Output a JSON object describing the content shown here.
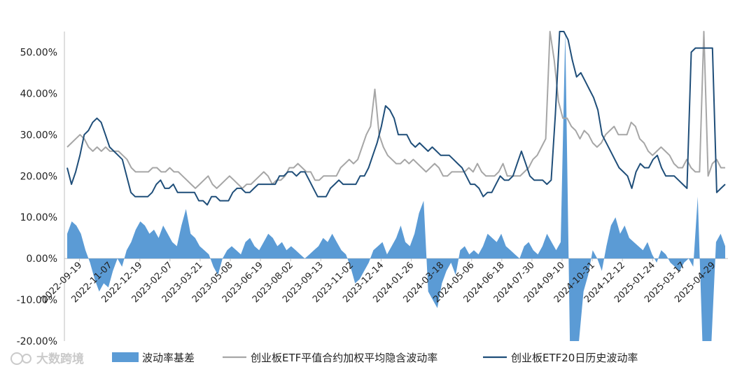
{
  "colors": {
    "basis": "#5b9bd5",
    "implied": "#a6a6a6",
    "historical": "#1f4e79",
    "axis": "#bfbfbf",
    "watermark": "#bdbdbd"
  },
  "watermark": {
    "text": "大数跨境"
  },
  "chart_data": {
    "type": "line",
    "x_tick_labels": [
      "2022-09-19",
      "2022-11-07",
      "2022-12-19",
      "2023-02-07",
      "2023-03-21",
      "2023-05-08",
      "2023-06-19",
      "2023-08-02",
      "2023-09-13",
      "2023-11-02",
      "2023-12-14",
      "2024-01-26",
      "2024-03-18",
      "2024-05-06",
      "2024-06-18",
      "2024-07-30",
      "2024-09-10",
      "2024-10-31",
      "2024-12-12",
      "2025-01-24",
      "2025-03-17",
      "2025-04-29"
    ],
    "y_tick_labels": [
      "-20.00%",
      "-10.00%",
      "0.00%",
      "10.00%",
      "20.00%",
      "30.00%",
      "40.00%",
      "50.00%"
    ],
    "ylim": [
      -20,
      55
    ],
    "grid": false,
    "legend_position": "bottom",
    "series": [
      {
        "name": "波动率基差",
        "type": "area",
        "values": [
          6,
          9,
          8,
          6,
          2,
          -1,
          -5,
          -8,
          -6,
          -7,
          -3,
          0,
          -2,
          2,
          4,
          7,
          9,
          8,
          6,
          7,
          5,
          8,
          6,
          4,
          3,
          8,
          12,
          6,
          5,
          3,
          2,
          1,
          -2,
          -4,
          0,
          2,
          3,
          2,
          1,
          4,
          5,
          3,
          2,
          4,
          6,
          5,
          3,
          4,
          2,
          3,
          2,
          1,
          0,
          1,
          2,
          3,
          5,
          4,
          6,
          4,
          2,
          1,
          -2,
          -6,
          -5,
          -3,
          -1,
          2,
          3,
          4,
          1,
          3,
          5,
          8,
          4,
          3,
          6,
          11,
          14,
          -8,
          -10,
          -12,
          -6,
          -3,
          -1,
          -4,
          2,
          3,
          1,
          2,
          1,
          3,
          6,
          5,
          4,
          6,
          3,
          2,
          1,
          0,
          3,
          4,
          2,
          1,
          3,
          6,
          4,
          2,
          4,
          55,
          -20,
          -20,
          -20,
          -8,
          -4,
          2,
          0,
          -3,
          3,
          8,
          10,
          6,
          8,
          5,
          4,
          3,
          2,
          4,
          1,
          -1,
          2,
          1,
          -1,
          -2,
          -3,
          -1,
          0,
          -2,
          15,
          -20,
          -20,
          -20,
          4,
          6,
          3
        ]
      },
      {
        "name": "创业板ETF平值合约加权平均隐含波动率",
        "type": "line",
        "values": [
          27,
          28,
          29,
          30,
          29,
          27,
          26,
          27,
          26,
          27,
          26,
          26,
          26,
          25,
          24,
          22,
          21,
          21,
          21,
          21,
          22,
          22,
          21,
          21,
          22,
          21,
          21,
          20,
          19,
          18,
          17,
          18,
          19,
          20,
          18,
          17,
          18,
          19,
          20,
          19,
          18,
          17,
          18,
          18,
          19,
          20,
          21,
          20,
          18,
          19,
          19,
          20,
          22,
          22,
          23,
          22,
          21,
          21,
          19,
          19,
          20,
          20,
          20,
          20,
          22,
          23,
          24,
          23,
          24,
          27,
          30,
          32,
          41,
          30,
          27,
          25,
          24,
          23,
          23,
          24,
          23,
          24,
          23,
          22,
          21,
          22,
          23,
          22,
          20,
          20,
          21,
          21,
          21,
          21,
          22,
          21,
          23,
          21,
          20,
          20,
          20,
          21,
          23,
          20,
          20,
          20,
          20,
          21,
          22,
          24,
          25,
          27,
          29,
          55,
          48,
          38,
          34,
          34,
          32,
          31,
          29,
          31,
          30,
          28,
          27,
          28,
          30,
          31,
          32,
          30,
          30,
          30,
          33,
          32,
          29,
          28,
          26,
          25,
          26,
          27,
          26,
          25,
          23,
          22,
          22,
          24,
          22,
          21,
          21,
          55,
          20,
          23,
          24,
          22,
          22
        ]
      },
      {
        "name": "创业板ETF20日历史波动率",
        "type": "line",
        "values": [
          22,
          18,
          21,
          25,
          30,
          31,
          33,
          34,
          33,
          30,
          27,
          26,
          25,
          24,
          20,
          16,
          15,
          15,
          15,
          15,
          16,
          18,
          19,
          17,
          17,
          18,
          16,
          16,
          16,
          16,
          16,
          14,
          14,
          13,
          15,
          15,
          14,
          14,
          14,
          16,
          17,
          17,
          16,
          16,
          17,
          18,
          18,
          18,
          18,
          18,
          20,
          20,
          21,
          21,
          20,
          21,
          21,
          19,
          17,
          15,
          15,
          15,
          17,
          18,
          19,
          18,
          18,
          18,
          18,
          20,
          20,
          22,
          25,
          28,
          32,
          37,
          36,
          34,
          30,
          30,
          30,
          28,
          27,
          28,
          27,
          26,
          27,
          26,
          25,
          25,
          25,
          24,
          23,
          22,
          20,
          18,
          18,
          17,
          15,
          16,
          16,
          18,
          20,
          19,
          19,
          20,
          23,
          26,
          23,
          20,
          19,
          19,
          19,
          18,
          19,
          35,
          58,
          55,
          53,
          48,
          44,
          45,
          43,
          41,
          39,
          36,
          30,
          28,
          26,
          24,
          22,
          21,
          20,
          17,
          21,
          23,
          22,
          22,
          24,
          25,
          22,
          20,
          20,
          20,
          19,
          18,
          17,
          50,
          51,
          51,
          51,
          51,
          51,
          16,
          17,
          18
        ]
      }
    ]
  },
  "legend": [
    {
      "label": "波动率基差",
      "kind": "area"
    },
    {
      "label": "创业板ETF平值合约加权平均隐含波动率",
      "kind": "line-gray"
    },
    {
      "label": "创业板ETF20日历史波动率",
      "kind": "line-dark"
    }
  ]
}
